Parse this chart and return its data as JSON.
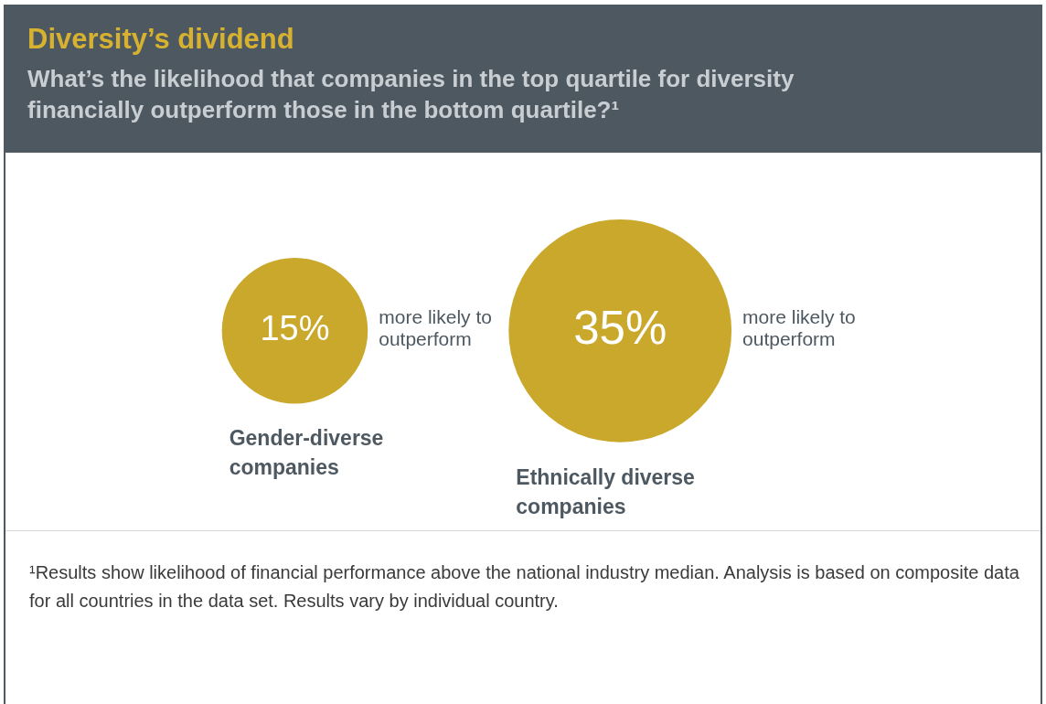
{
  "chart_data": {
    "type": "other",
    "title": "Diversity’s dividend",
    "subtitle": "What’s the likelihood that companies in the top quartile for diversity financially outperform those in the bottom quartile?¹",
    "categories": [
      "Gender-diverse companies",
      "Ethnically diverse companies"
    ],
    "values": [
      15,
      35
    ],
    "value_labels": [
      "15%",
      "35%"
    ],
    "color": "#c9a82c",
    "annotations": [
      {
        "text": "more likely to outperform",
        "x": "Gender-diverse companies"
      },
      {
        "text": "more likely to outperform",
        "x": "Ethnically diverse companies"
      },
      "¹Results show likelihood of financial performance above the national industry median. Analysis is based on composite data for all countries in the data set. Results vary by individual country."
    ]
  }
}
